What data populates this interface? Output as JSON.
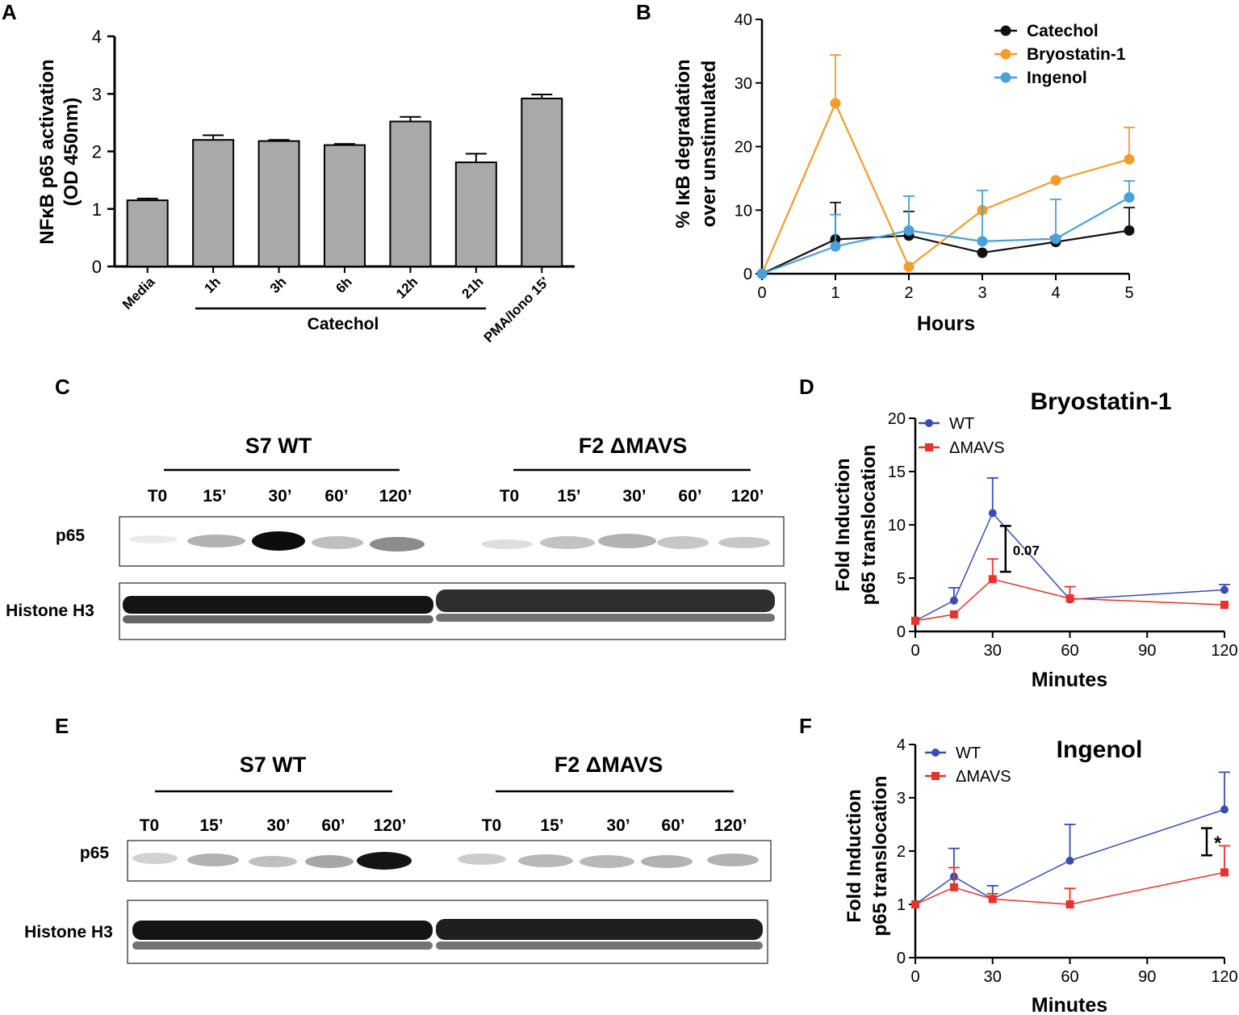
{
  "panel_letters": {
    "a": "A",
    "b": "B",
    "c": "C",
    "d": "D",
    "e": "E",
    "f": "F"
  },
  "chart_data": [
    {
      "panel": "A",
      "type": "bar",
      "ylabel_line1": "NFκB p65 activation",
      "ylabel_line2": "(OD 450nm)",
      "categories": [
        "Media",
        "1h",
        "3h",
        "6h",
        "12h",
        "21h",
        "PMA/Iono 15'"
      ],
      "values": [
        1.15,
        2.2,
        2.18,
        2.11,
        2.52,
        1.81,
        2.92
      ],
      "errors": [
        0.03,
        0.08,
        0.02,
        0.02,
        0.08,
        0.15,
        0.07
      ],
      "group_label": "Catechol",
      "ylim": [
        0,
        4
      ],
      "yticks": [
        0,
        1,
        2,
        3,
        4
      ],
      "bar_color": "#a9a9a9"
    },
    {
      "panel": "B",
      "type": "line",
      "xlabel": "Hours",
      "ylabel_line1": "% IκB degradation",
      "ylabel_line2": "over unstimulated",
      "x": [
        0,
        1,
        2,
        3,
        4,
        5
      ],
      "xlim": [
        0,
        5
      ],
      "ylim": [
        0,
        40
      ],
      "xticks": [
        0,
        1,
        2,
        3,
        4,
        5
      ],
      "yticks": [
        0,
        10,
        20,
        30,
        40
      ],
      "series": [
        {
          "name": "Catechol",
          "color": "#111111",
          "values": [
            0,
            5.4,
            6.0,
            3.3,
            5.0,
            6.8
          ],
          "errors": [
            0,
            5.8,
            3.8,
            0,
            0.8,
            3.6
          ]
        },
        {
          "name": "Bryostatin-1",
          "color": "#f39c2b",
          "values": [
            0,
            26.8,
            1.1,
            10.0,
            14.7,
            18.0
          ],
          "errors": [
            0,
            7.6,
            0,
            0,
            0,
            5.0
          ]
        },
        {
          "name": "Ingenol",
          "color": "#4aa0d8",
          "values": [
            0,
            4.3,
            6.8,
            5.1,
            5.5,
            12.0
          ],
          "errors": [
            0,
            5.0,
            5.4,
            8.0,
            6.2,
            2.6
          ]
        }
      ]
    },
    {
      "panel": "D",
      "type": "line",
      "title": "Bryostatin-1",
      "xlabel": "Minutes",
      "ylabel_line1": "Fold Induction",
      "ylabel_line2": "p65 translocation",
      "x": [
        0,
        15,
        30,
        60,
        120
      ],
      "xlim": [
        0,
        120
      ],
      "ylim": [
        0,
        20
      ],
      "xticks": [
        0,
        30,
        60,
        90,
        120
      ],
      "yticks": [
        0,
        5,
        10,
        15,
        20
      ],
      "annotation": "0.07",
      "series": [
        {
          "name": "WT",
          "color": "#3a4db3",
          "marker": "circle",
          "values": [
            1.0,
            2.9,
            11.1,
            3.0,
            3.9
          ],
          "errors": [
            0,
            1.2,
            3.3,
            0,
            0.5
          ]
        },
        {
          "name": "ΔMAVS",
          "color": "#e8332c",
          "marker": "square",
          "values": [
            1.0,
            1.6,
            4.9,
            3.1,
            2.5
          ],
          "errors": [
            0,
            0,
            1.9,
            1.1,
            0
          ]
        }
      ]
    },
    {
      "panel": "F",
      "type": "line",
      "title": "Ingenol",
      "xlabel": "Minutes",
      "ylabel_line1": "Fold Induction",
      "ylabel_line2": "p65 translocation",
      "x": [
        0,
        15,
        30,
        60,
        120
      ],
      "xlim": [
        0,
        120
      ],
      "ylim": [
        0,
        4
      ],
      "xticks": [
        0,
        30,
        60,
        90,
        120
      ],
      "yticks": [
        0,
        1,
        2,
        3,
        4
      ],
      "annotation": "*",
      "series": [
        {
          "name": "WT",
          "color": "#3a4db3",
          "marker": "circle",
          "values": [
            1.0,
            1.52,
            1.1,
            1.82,
            2.78
          ],
          "errors": [
            0,
            0.53,
            0.25,
            0.68,
            0.7
          ]
        },
        {
          "name": "ΔMAVS",
          "color": "#e8332c",
          "marker": "square",
          "values": [
            1.0,
            1.32,
            1.1,
            1.0,
            1.6
          ],
          "errors": [
            0,
            0.37,
            0.1,
            0.3,
            0.5
          ]
        }
      ]
    }
  ],
  "blot_c": {
    "group1": "S7 WT",
    "group2": "F2 ΔMAVS",
    "lanes1": [
      "T0",
      "15’",
      "30’",
      "60’",
      "120’"
    ],
    "lanes2": [
      "T0",
      "15’",
      "30’",
      "60’",
      "120’"
    ],
    "row1_label": "p65",
    "row2_label": "Histone H3"
  },
  "blot_e": {
    "group1": "S7 WT",
    "group2": "F2 ΔMAVS",
    "lanes1": [
      "T0",
      "15’",
      "30’",
      "60’",
      "120’"
    ],
    "lanes2": [
      "T0",
      "15’",
      "30’",
      "60’",
      "120’"
    ],
    "row1_label": "p65",
    "row2_label": "Histone H3"
  }
}
